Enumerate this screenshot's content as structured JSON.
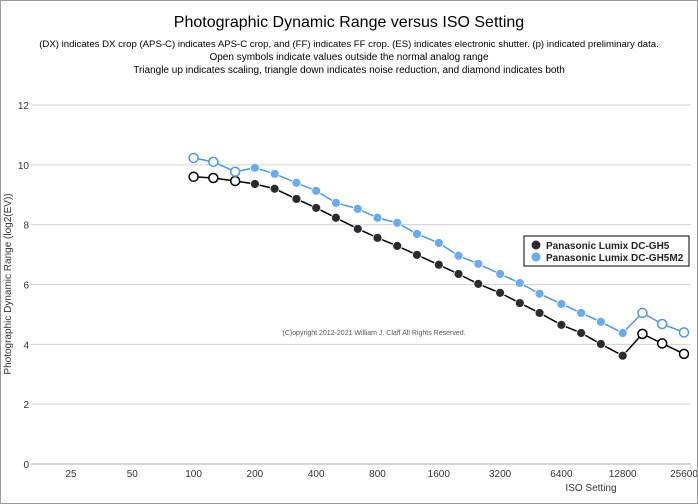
{
  "chart_data": {
    "type": "line",
    "title": "Photographic Dynamic Range versus ISO Setting",
    "subtitle": [
      "(DX) indicates DX crop (APS-C) indicates APS-C crop, and (FF) indicates FF crop. (ES) indicates electronic shutter. (p) indicated preliminary data.",
      "Open symbols indicate values outside the normal analog range",
      "Triangle up indicates scaling, triangle down indicates noise reduction, and diamond indicates both"
    ],
    "xlabel": "ISO Setting",
    "ylabel": "Photographic Dynamic Range (log2(EV))",
    "x_scale": "log2",
    "xlim": [
      25,
      25600
    ],
    "ylim": [
      0,
      12
    ],
    "x_ticks": [
      25,
      50,
      100,
      200,
      400,
      800,
      1600,
      3200,
      6400,
      12800,
      25600
    ],
    "y_ticks": [
      0,
      2,
      4,
      6,
      8,
      10,
      12
    ],
    "grid": "horizontal",
    "legend_position": "right",
    "annotation": "(C)opyright 2012-2021 William J. Claff All Rights Reserved.",
    "x": [
      100,
      125,
      160,
      200,
      250,
      320,
      400,
      500,
      640,
      800,
      1000,
      1250,
      1600,
      2000,
      2500,
      3200,
      4000,
      5000,
      6400,
      8000,
      10000,
      12800,
      16000,
      20000,
      25600
    ],
    "series": [
      {
        "name": "Panasonic Lumix DC-GH5",
        "color": "#2b2b30",
        "line_color": "#000000",
        "values": [
          9.6,
          9.56,
          9.46,
          9.36,
          9.2,
          8.86,
          8.56,
          8.23,
          7.86,
          7.56,
          7.29,
          6.99,
          6.66,
          6.35,
          6.02,
          5.72,
          5.38,
          5.05,
          4.65,
          4.38,
          4.01,
          3.62,
          4.35,
          4.03,
          3.68
        ],
        "open": [
          true,
          true,
          true,
          false,
          false,
          false,
          false,
          false,
          false,
          false,
          false,
          false,
          false,
          false,
          false,
          false,
          false,
          false,
          false,
          false,
          false,
          false,
          true,
          true,
          true
        ]
      },
      {
        "name": "Panasonic Lumix DC-GH5M2",
        "color": "#6aaaf0",
        "line_color": "#4a98e8",
        "values": [
          10.23,
          10.1,
          9.77,
          9.9,
          9.7,
          9.4,
          9.13,
          8.73,
          8.53,
          8.23,
          8.06,
          7.69,
          7.39,
          6.96,
          6.69,
          6.35,
          6.05,
          5.69,
          5.35,
          5.05,
          4.75,
          4.38,
          5.05,
          4.68,
          4.4
        ],
        "open": [
          true,
          true,
          true,
          false,
          false,
          false,
          false,
          false,
          false,
          false,
          false,
          false,
          false,
          false,
          false,
          false,
          false,
          false,
          false,
          false,
          false,
          false,
          true,
          true,
          true
        ]
      }
    ]
  }
}
